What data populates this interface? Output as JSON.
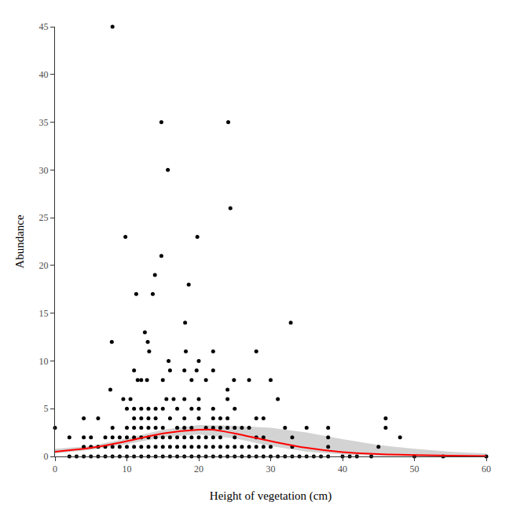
{
  "chart_data": {
    "type": "scatter",
    "x_label": "Height of vegetation (cm)",
    "y_label": "Abundance",
    "xlim": [
      0,
      60
    ],
    "xticks": [
      0,
      10,
      20,
      30,
      40,
      50,
      60
    ],
    "ylim": [
      0,
      45
    ],
    "yticks": [
      0,
      5,
      10,
      15,
      20,
      25,
      30,
      35,
      40,
      45
    ],
    "grid": false,
    "series": [
      {
        "type": "band",
        "color": "#d3d3d3",
        "x": [
          0,
          5,
          10,
          15,
          20,
          25,
          30,
          35,
          40,
          45,
          50,
          55,
          60
        ],
        "lower": [
          0.3,
          0.7,
          1.3,
          2.0,
          2.3,
          1.9,
          1.1,
          0.5,
          0.2,
          0.05,
          0,
          0,
          0
        ],
        "upper": [
          0.8,
          1.1,
          1.9,
          2.8,
          3.3,
          3.2,
          3.0,
          2.5,
          1.8,
          1.2,
          0.8,
          0.5,
          0.3
        ]
      },
      {
        "type": "scatter",
        "color": "#000000",
        "marker": "circle",
        "x": [
          8,
          14.8,
          24.1,
          15.7,
          24.4,
          9.8,
          19.8,
          14.8,
          13.9,
          18.6,
          11.3,
          13.6,
          18.1,
          32.8,
          12.5,
          12.9,
          7.9,
          13.1,
          18.2,
          22,
          28,
          15.8,
          20,
          16,
          11,
          18,
          19.7,
          22,
          24.9,
          11.5,
          12,
          12.8,
          15,
          19,
          21,
          24,
          27,
          30,
          7.7,
          31,
          9.5,
          10.5,
          15.5,
          16.5,
          18,
          20,
          24,
          10,
          11,
          12,
          13,
          14,
          15,
          17,
          19,
          20,
          22,
          25,
          4,
          6,
          11,
          12,
          13,
          14,
          16,
          18,
          20,
          22,
          23,
          24,
          28,
          29,
          46,
          0,
          8,
          10,
          11,
          12,
          13,
          14,
          15,
          17,
          18,
          19,
          21,
          22,
          23,
          24,
          25,
          26,
          27,
          32,
          35,
          38,
          46,
          2,
          4,
          5,
          7,
          8,
          9,
          10,
          11,
          12,
          13,
          14,
          15,
          16,
          17,
          18,
          19,
          20,
          21,
          22,
          23,
          25,
          28,
          29,
          33,
          38,
          48,
          4,
          5,
          6,
          7,
          8,
          9,
          10,
          11,
          12,
          13,
          14,
          15,
          16,
          17,
          18,
          19,
          20,
          21,
          22,
          23,
          24,
          25,
          26,
          27,
          28,
          29,
          30,
          33,
          38,
          45,
          2,
          3,
          4,
          5,
          6,
          7,
          8,
          9,
          10,
          11,
          12,
          13,
          14,
          15,
          16,
          17,
          18,
          19,
          20,
          21,
          22,
          23,
          24,
          25,
          26,
          27,
          28,
          29,
          30,
          31,
          32,
          33,
          34,
          35,
          36,
          37,
          38,
          40,
          41,
          42,
          44,
          50,
          54,
          60
        ],
        "values": [
          45,
          35,
          35,
          30,
          26,
          23,
          23,
          21,
          19,
          18,
          17,
          17,
          14,
          14,
          13,
          12,
          12,
          11,
          11,
          11,
          11,
          10,
          10,
          9,
          9,
          9,
          9,
          9,
          8,
          8,
          8,
          8,
          8,
          8,
          8,
          7,
          8,
          8,
          7,
          6,
          6,
          6,
          6,
          6,
          6,
          6,
          6,
          5,
          5,
          5,
          5,
          5,
          5,
          5,
          5,
          5,
          5,
          5,
          4,
          4,
          4,
          4,
          4,
          4,
          4,
          4,
          4,
          4,
          4,
          4,
          4,
          4,
          4,
          3,
          3,
          3,
          3,
          3,
          3,
          3,
          3,
          3,
          3,
          3,
          3,
          3,
          3,
          3,
          3,
          3,
          3,
          3,
          3,
          3,
          3,
          2,
          2,
          2,
          2,
          2,
          2,
          2,
          2,
          2,
          2,
          2,
          2,
          2,
          2,
          2,
          2,
          2,
          2,
          2,
          2,
          2,
          2,
          2,
          2,
          2,
          2,
          1,
          1,
          1,
          1,
          1,
          1,
          1,
          1,
          1,
          1,
          1,
          1,
          1,
          1,
          1,
          1,
          1,
          1,
          1,
          1,
          1,
          1,
          1,
          1,
          1,
          1,
          1,
          1,
          1,
          1,
          0,
          0,
          0,
          0,
          0,
          0,
          0,
          0,
          0,
          0,
          0,
          0,
          0,
          0,
          0,
          0,
          0,
          0,
          0,
          0,
          0,
          0,
          0,
          0,
          0,
          0,
          0,
          0,
          0,
          0,
          0,
          0,
          0,
          0,
          0,
          0,
          0,
          0,
          0,
          0,
          0,
          0,
          0,
          0
        ]
      },
      {
        "type": "line",
        "color": "#ff0000",
        "line_style": "solid",
        "x": [
          0,
          5,
          10,
          15,
          20,
          22,
          25,
          30,
          35,
          40,
          45,
          50,
          55,
          60
        ],
        "values": [
          0.5,
          0.9,
          1.6,
          2.4,
          2.8,
          2.8,
          2.4,
          1.6,
          0.9,
          0.45,
          0.25,
          0.15,
          0.08,
          0.05
        ]
      }
    ]
  }
}
